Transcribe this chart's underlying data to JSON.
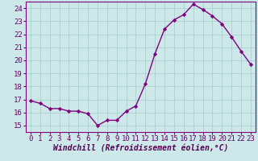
{
  "x": [
    0,
    1,
    2,
    3,
    4,
    5,
    6,
    7,
    8,
    9,
    10,
    11,
    12,
    13,
    14,
    15,
    16,
    17,
    18,
    19,
    20,
    21,
    22,
    23
  ],
  "y": [
    16.9,
    16.7,
    16.3,
    16.3,
    16.1,
    16.1,
    15.9,
    15.0,
    15.4,
    15.4,
    16.1,
    16.5,
    18.2,
    20.5,
    22.4,
    23.1,
    23.5,
    24.3,
    23.9,
    23.4,
    22.8,
    21.8,
    20.7,
    19.7
  ],
  "line_color": "#800080",
  "marker": "D",
  "marker_size": 2.2,
  "bg_color": "#cce8e8",
  "grid_color": "#aacfcf",
  "xlabel": "Windchill (Refroidissement éolien,°C)",
  "xlim": [
    -0.5,
    23.5
  ],
  "ylim": [
    14.5,
    24.5
  ],
  "yticks": [
    15,
    16,
    17,
    18,
    19,
    20,
    21,
    22,
    23,
    24
  ],
  "xticks": [
    0,
    1,
    2,
    3,
    4,
    5,
    6,
    7,
    8,
    9,
    10,
    11,
    12,
    13,
    14,
    15,
    16,
    17,
    18,
    19,
    20,
    21,
    22,
    23
  ],
  "tick_label_size": 6.5,
  "xlabel_size": 7.0,
  "line_width": 1.0
}
